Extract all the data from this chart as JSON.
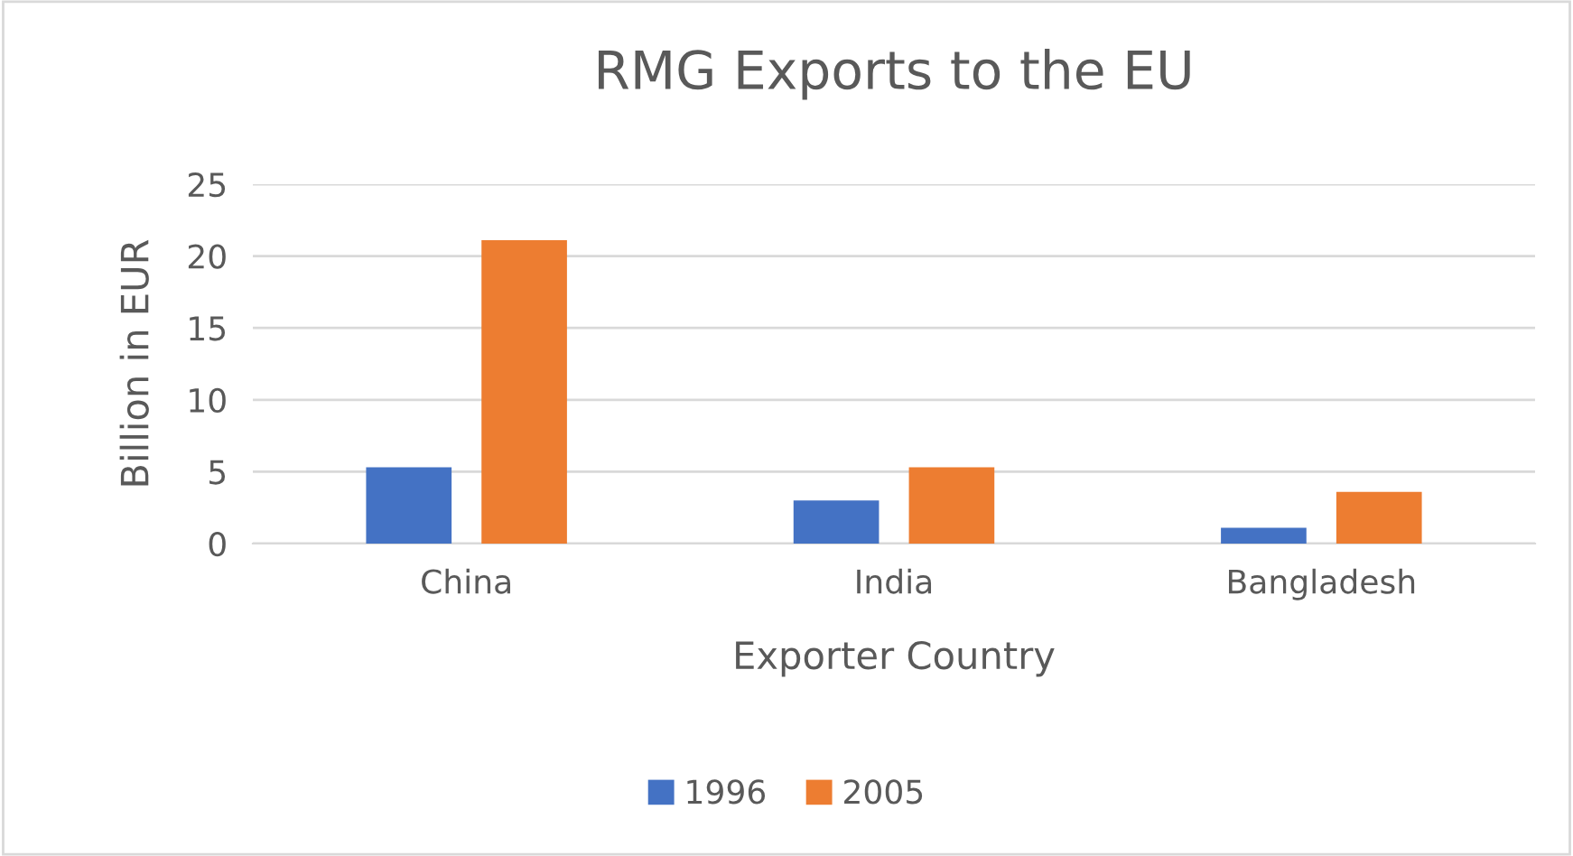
{
  "chart_data": {
    "type": "bar",
    "title": "RMG Exports to the EU",
    "xlabel": "Exporter Country",
    "ylabel": "Billion in EUR",
    "categories": [
      "China",
      "India",
      "Bangladesh"
    ],
    "series": [
      {
        "name": "1996",
        "color": "#4472c4",
        "values": [
          5.3,
          3.0,
          1.1
        ]
      },
      {
        "name": "2005",
        "color": "#ed7d31",
        "values": [
          21.1,
          5.3,
          3.6
        ]
      }
    ],
    "ylim": [
      0,
      25
    ],
    "yticks": [
      0,
      5,
      10,
      15,
      20,
      25
    ],
    "grid": "y",
    "legend": "bottom"
  }
}
